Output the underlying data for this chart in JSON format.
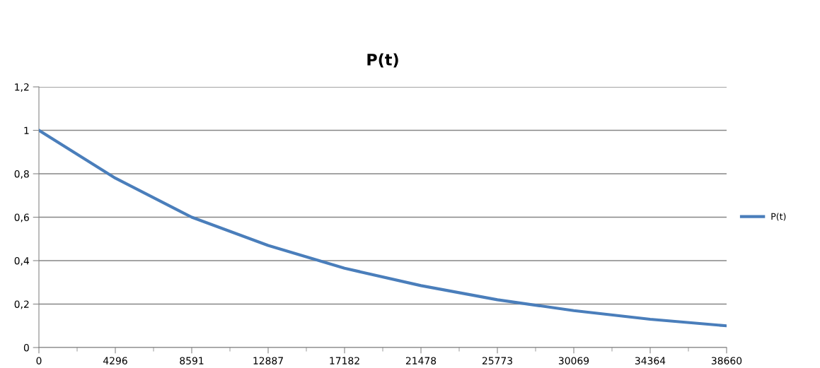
{
  "chart_data": {
    "type": "line",
    "title": "P(t)",
    "categories": [
      "0",
      "4296",
      "8591",
      "12887",
      "17182",
      "21478",
      "25773",
      "30069",
      "34364",
      "38660"
    ],
    "series": [
      {
        "name": "P(t)",
        "color": "#4a7ebb",
        "values": [
          1,
          0.78,
          0.6,
          0.47,
          0.365,
          0.285,
          0.22,
          0.17,
          0.13,
          0.1
        ]
      }
    ],
    "ylim": [
      0,
      1.2
    ],
    "yticks": [
      0,
      {
        "value": 0.2,
        "label": "0,2"
      },
      {
        "value": 0.4,
        "label": "0,4"
      },
      {
        "value": 0.6,
        "label": "0,6"
      },
      {
        "value": 0.8,
        "label": "0,8"
      },
      1,
      {
        "value": 1.2,
        "label": "1,2"
      }
    ],
    "grid": "y",
    "legend": "right",
    "marker": "none",
    "line_style": "solid"
  }
}
